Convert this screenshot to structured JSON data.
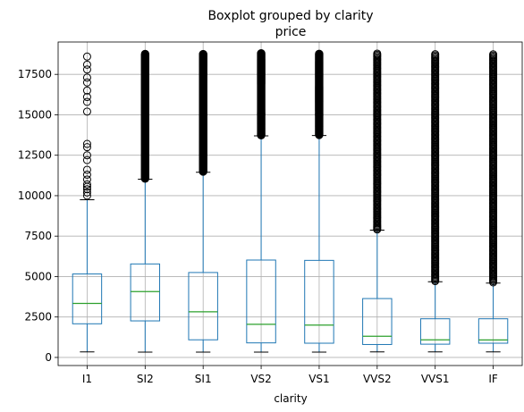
{
  "chart_data": {
    "type": "boxplot",
    "title": "Boxplot grouped by clarity",
    "subtitle": "price",
    "xlabel": "clarity",
    "ylabel": "",
    "ylim": [
      -500,
      19500
    ],
    "yticks": [
      0,
      2500,
      5000,
      7500,
      10000,
      12500,
      15000,
      17500
    ],
    "grid": true,
    "colors": {
      "box": "#1f77b4",
      "median": "#2ca02c",
      "whisker": "#000000",
      "grid": "#b0b0b0",
      "flier": "#000000"
    },
    "categories": [
      "I1",
      "SI2",
      "SI1",
      "VS2",
      "VS1",
      "VVS2",
      "VVS1",
      "IF"
    ],
    "boxes": [
      {
        "label": "I1",
        "whislo": 340,
        "q1": 2080,
        "med": 3340,
        "q3": 5160,
        "whishi": 9750,
        "fliers": [
          10000,
          10200,
          10400,
          10550,
          10700,
          11000,
          11300,
          11600,
          12200,
          12500,
          13000,
          13200,
          15200,
          15800,
          16100,
          16500,
          17000,
          17300,
          17800,
          18100,
          18600
        ]
      },
      {
        "label": "SI2",
        "whislo": 330,
        "q1": 2260,
        "med": 4070,
        "q3": 5780,
        "whishi": 11020,
        "flier_band": [
          11020,
          18800
        ]
      },
      {
        "label": "SI1",
        "whislo": 330,
        "q1": 1090,
        "med": 2820,
        "q3": 5250,
        "whishi": 11450,
        "flier_band": [
          11450,
          18800
        ]
      },
      {
        "label": "VS2",
        "whislo": 330,
        "q1": 900,
        "med": 2050,
        "q3": 6020,
        "whishi": 13700,
        "flier_band": [
          13700,
          18800
        ]
      },
      {
        "label": "VS1",
        "whislo": 330,
        "q1": 880,
        "med": 2000,
        "q3": 6000,
        "whishi": 13720,
        "flier_band": [
          13720,
          18800
        ]
      },
      {
        "label": "VVS2",
        "whislo": 340,
        "q1": 800,
        "med": 1310,
        "q3": 3640,
        "whishi": 7870,
        "flier_band": [
          7870,
          18800
        ]
      },
      {
        "label": "VVS1",
        "whislo": 340,
        "q1": 820,
        "med": 1090,
        "q3": 2390,
        "whishi": 4680,
        "flier_band": [
          4680,
          18800
        ]
      },
      {
        "label": "IF",
        "whislo": 340,
        "q1": 880,
        "med": 1080,
        "q3": 2390,
        "whishi": 4600,
        "flier_band": [
          4600,
          18800
        ]
      }
    ]
  }
}
